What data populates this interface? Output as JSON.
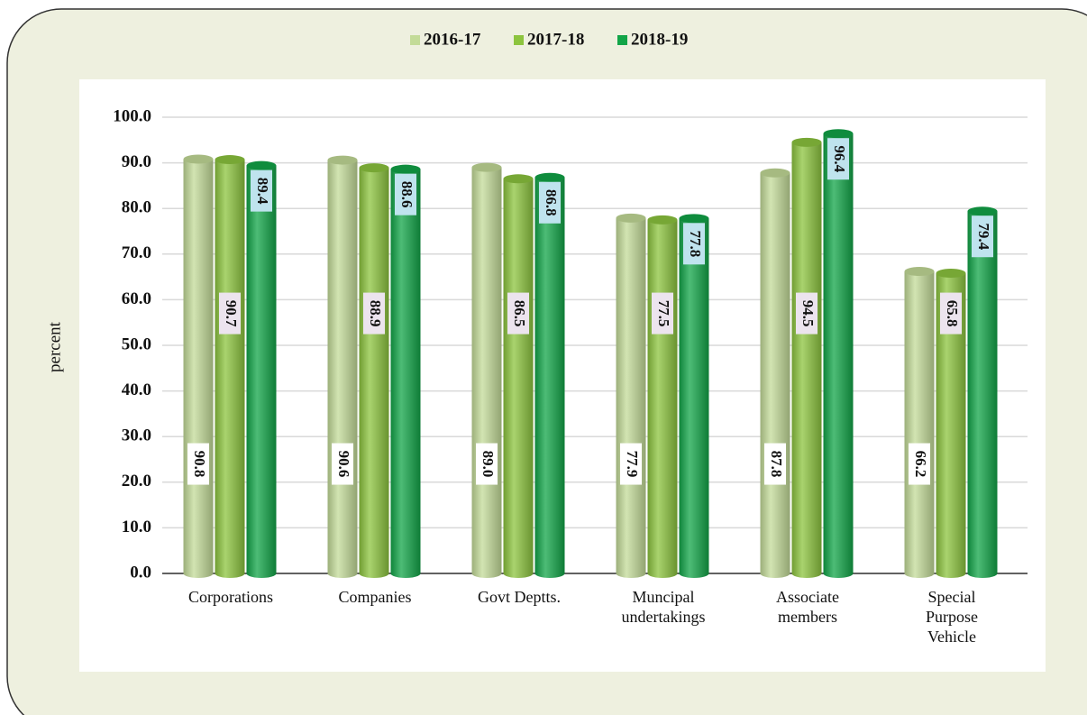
{
  "chart_data": {
    "type": "bar",
    "y_label": "percent",
    "categories": [
      [
        "Corporations"
      ],
      [
        "Companies"
      ],
      [
        "Govt Deptts."
      ],
      [
        "Muncipal",
        "undertakings"
      ],
      [
        "Associate",
        "members"
      ],
      [
        "Special",
        "Purpose",
        "Vehicle"
      ]
    ],
    "series": [
      {
        "name": "2016-17",
        "color": "#c3db98",
        "values": [
          90.8,
          90.6,
          89.0,
          77.9,
          87.8,
          66.2
        ],
        "value_labels": [
          "90.8",
          "90.6",
          "89.0",
          "77.9",
          "87.8",
          "66.2"
        ]
      },
      {
        "name": "2017-18",
        "color": "#8cc43e",
        "values": [
          90.7,
          88.9,
          86.5,
          77.5,
          94.5,
          65.8
        ]
      },
      {
        "name": "2018-19",
        "color": "#12a548",
        "values": [
          89.4,
          88.6,
          86.8,
          77.8,
          96.4,
          79.4
        ]
      }
    ],
    "ylim": [
      0,
      100
    ],
    "yticks": [
      {
        "value": 0,
        "label": "0.0"
      },
      {
        "value": 10,
        "label": "10.0"
      },
      {
        "value": 20,
        "label": "20.0"
      },
      {
        "value": 30,
        "label": "30.0"
      },
      {
        "value": 40,
        "label": "40.0"
      },
      {
        "value": 50,
        "label": "50.0"
      },
      {
        "value": 60,
        "label": "60.0"
      },
      {
        "value": 70,
        "label": "70.0"
      },
      {
        "value": 80,
        "label": "80.0"
      },
      {
        "value": 90,
        "label": "90.0"
      },
      {
        "value": 100,
        "label": "100.0"
      }
    ],
    "grid": true
  }
}
